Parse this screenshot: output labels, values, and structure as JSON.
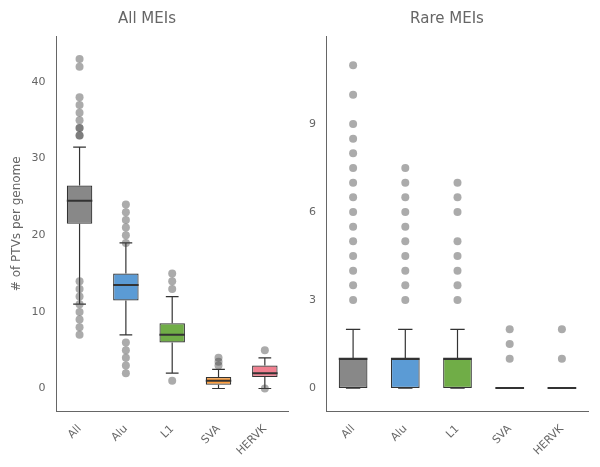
{
  "chart_data": [
    {
      "type": "box",
      "title": "All MEIs",
      "ylabel": "# of PTVs per genome",
      "categories": [
        "All",
        "Alu",
        "L1",
        "SVA",
        "HERVK"
      ],
      "colors": [
        "#888888",
        "#5b9bd5",
        "#70ad47",
        "#ffa040",
        "#f08090"
      ],
      "boxes": [
        {
          "q1": 21.5,
          "median": 24.5,
          "q3": 26.5,
          "whislo": 11.0,
          "whishi": 31.5
        },
        {
          "q1": 11.5,
          "median": 13.5,
          "q3": 15.0,
          "whislo": 7.0,
          "whishi": 19.0
        },
        {
          "q1": 6.0,
          "median": 7.0,
          "q3": 8.5,
          "whislo": 2.0,
          "whishi": 12.0
        },
        {
          "q1": 0.5,
          "median": 1.0,
          "q3": 1.5,
          "whislo": 0.0,
          "whishi": 2.5
        },
        {
          "q1": 1.5,
          "median": 2.0,
          "q3": 3.0,
          "whislo": 0.0,
          "whishi": 4.0
        }
      ],
      "outliers": [
        [
          43,
          42,
          38,
          37,
          36,
          35,
          34,
          34,
          33,
          33,
          14,
          13,
          12,
          11,
          10,
          9,
          8,
          7
        ],
        [
          24,
          23,
          22,
          21,
          20,
          19,
          6,
          5,
          4,
          3,
          2
        ],
        [
          15,
          14,
          13,
          1
        ],
        [
          4,
          3.5,
          3
        ],
        [
          5,
          0
        ]
      ],
      "ylim": [
        -3,
        46
      ],
      "yticks": [
        0,
        10,
        20,
        30,
        40
      ],
      "grid": false
    },
    {
      "type": "box",
      "title": "Rare MEIs",
      "categories": [
        "All",
        "Alu",
        "L1",
        "SVA",
        "HERVK"
      ],
      "colors": [
        "#888888",
        "#5b9bd5",
        "#70ad47",
        "#ffa040",
        "#f08090"
      ],
      "boxes": [
        {
          "q1": 0.0,
          "median": 1.0,
          "q3": 1.0,
          "whislo": 0.0,
          "whishi": 2.0
        },
        {
          "q1": 0.0,
          "median": 1.0,
          "q3": 1.0,
          "whislo": 0.0,
          "whishi": 2.0
        },
        {
          "q1": 0.0,
          "median": 1.0,
          "q3": 1.0,
          "whislo": 0.0,
          "whishi": 2.0
        },
        {
          "q1": 0.0,
          "median": 0.0,
          "q3": 0.0,
          "whislo": 0.0,
          "whishi": 0.0
        },
        {
          "q1": 0.0,
          "median": 0.0,
          "q3": 0.0,
          "whislo": 0.0,
          "whishi": 0.0
        }
      ],
      "outliers": [
        [
          11,
          10,
          9,
          8.5,
          8,
          7.5,
          7,
          6.5,
          6,
          5.5,
          5,
          4.5,
          4,
          3.5,
          3
        ],
        [
          7.5,
          7,
          6.5,
          6,
          5.5,
          5,
          4.5,
          4,
          3.5,
          3
        ],
        [
          7,
          6.5,
          6,
          5,
          4.5,
          4,
          3.5,
          3
        ],
        [
          2,
          1.5,
          1
        ],
        [
          2,
          1
        ]
      ],
      "ylim": [
        -0.8,
        12
      ],
      "yticks": [
        0,
        3,
        6,
        9
      ],
      "grid": false
    }
  ]
}
